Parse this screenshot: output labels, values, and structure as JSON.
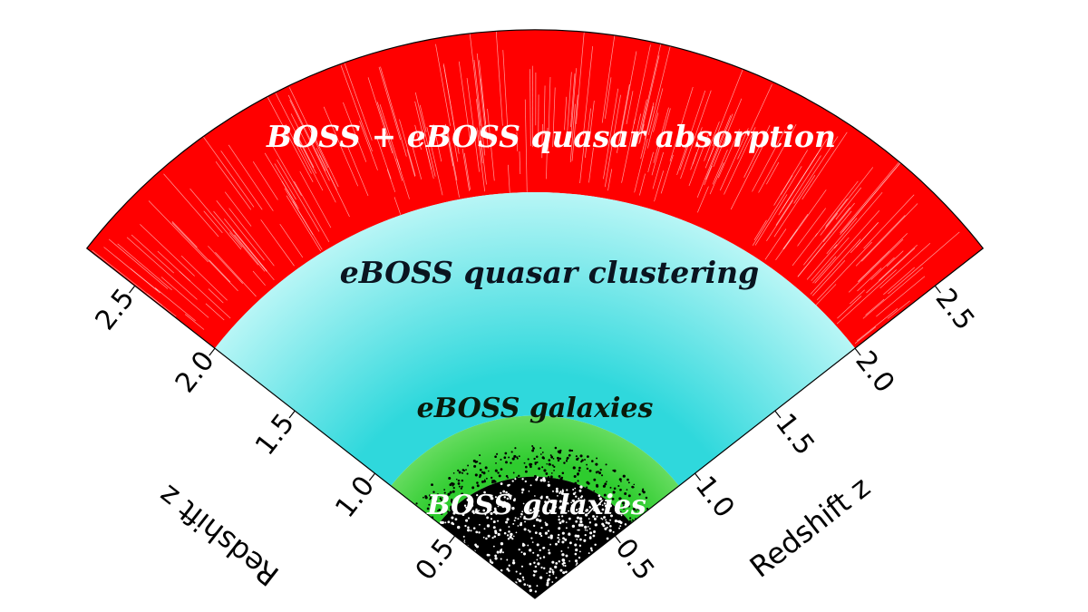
{
  "diagram": {
    "regions": [
      {
        "name": "boss-quasar-absorption",
        "label": "BOSS + eBOSS quasar absorption",
        "color": "#ff0000",
        "z_inner": 2.0,
        "z_outer": 2.8
      },
      {
        "name": "eboss-quasar-clustering",
        "label": "eBOSS quasar clustering",
        "color": "#40e0e0",
        "z_inner": 0.9,
        "z_outer": 2.0
      },
      {
        "name": "eboss-galaxies",
        "label": "eBOSS galaxies",
        "color": "#55dd44",
        "z_inner": 0.6,
        "z_outer": 0.9
      },
      {
        "name": "boss-galaxies",
        "label": "BOSS galaxies",
        "color": "#000000",
        "z_inner": 0.0,
        "z_outer": 0.6
      }
    ],
    "left_axis": {
      "title": "Redshift z",
      "ticks": [
        "0.5",
        "1.0",
        "1.5",
        "2.0",
        "2.5"
      ]
    },
    "right_axis": {
      "title": "Redshift z",
      "ticks": [
        "0.5",
        "1.0",
        "1.5",
        "2.0",
        "2.5"
      ]
    }
  }
}
